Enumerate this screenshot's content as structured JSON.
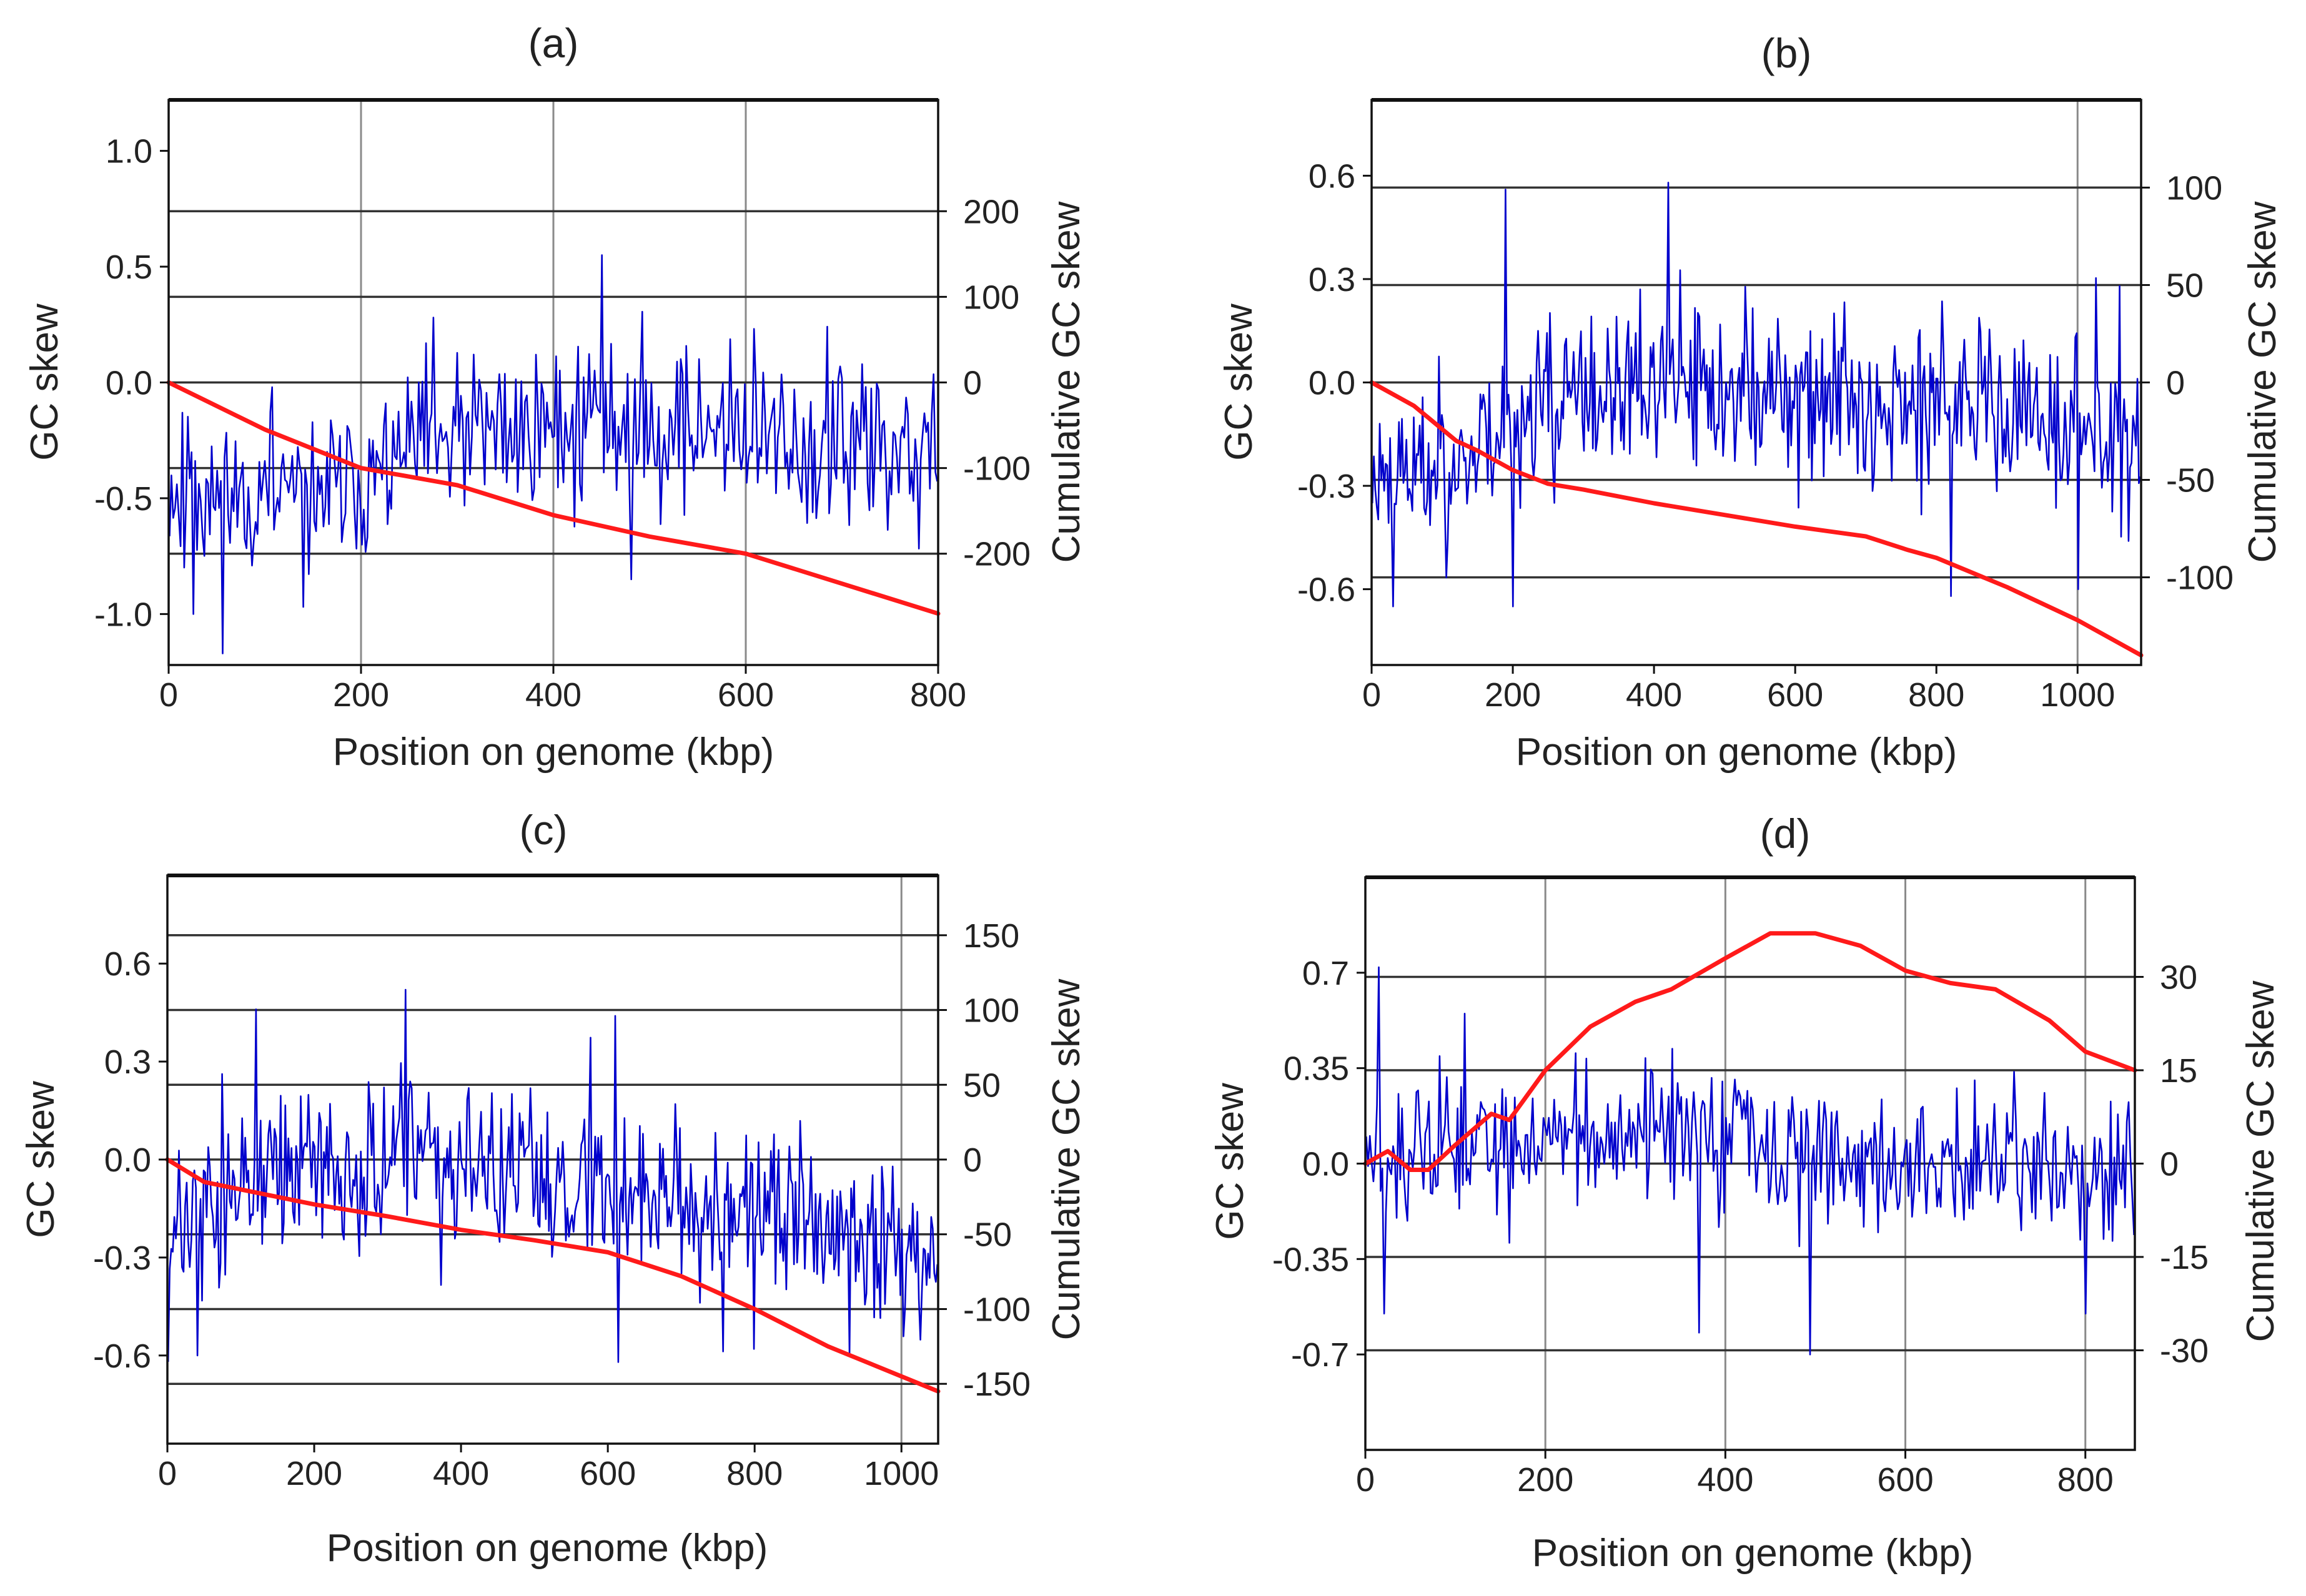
{
  "colors": {
    "skew": "#0000cc",
    "cumulative": "#ff1a1a",
    "frame": "#111111",
    "grid_vertical": "#8a8a8a",
    "grid_horizontal": "#333333"
  },
  "chart_data": [
    {
      "id": "a",
      "type": "line",
      "panel_label": "(a)",
      "xlabel": "Position on genome (kbp)",
      "ylabel": "GC skew",
      "y2label": "Cumulative GC skew",
      "xlim": [
        0,
        800
      ],
      "xticks": [
        0,
        200,
        400,
        600,
        800
      ],
      "xtick_labels": [
        "0",
        "200",
        "400",
        "600",
        "800"
      ],
      "ylim": [
        -1.22,
        1.22
      ],
      "yticks": [
        1.0,
        0.5,
        0.0,
        -0.5,
        -1.0
      ],
      "ytick_labels": [
        "1.0",
        "0.5",
        "0.0",
        "-0.5",
        "-1.0"
      ],
      "y2lim": [
        -330,
        330
      ],
      "y2ticks": [
        200,
        100,
        0,
        -100,
        -200
      ],
      "y2tick_labels": [
        "200",
        "100",
        "0",
        "-100",
        "-200"
      ],
      "xgrid": [
        200,
        400,
        600
      ],
      "y2grid": [
        200,
        100,
        0,
        -100,
        -200
      ],
      "skew": {
        "name": "GC skew",
        "axis": "left",
        "n": 420,
        "seed": 11,
        "trend_x": [
          0,
          150,
          250,
          350,
          450,
          550,
          700,
          800
        ],
        "trend_y": [
          -0.45,
          -0.5,
          -0.3,
          -0.2,
          -0.15,
          -0.2,
          -0.3,
          -0.3
        ],
        "noise": 0.26,
        "spikes": [
          [
            450,
            0.55
          ],
          [
            275,
            0.28
          ],
          [
            25,
            -1.0
          ],
          [
            480,
            -0.85
          ]
        ]
      },
      "cumulative": {
        "name": "Cumulative GC skew",
        "axis": "right",
        "x": [
          0,
          100,
          200,
          300,
          400,
          500,
          600,
          700,
          800
        ],
        "y": [
          0,
          -55,
          -100,
          -120,
          -155,
          -180,
          -200,
          -235,
          -270
        ]
      }
    },
    {
      "id": "b",
      "type": "line",
      "panel_label": "(b)",
      "xlabel": "Position on genome (kbp)",
      "ylabel": "GC skew",
      "y2label": "Cumulative GC skew",
      "xlim": [
        0,
        1090
      ],
      "xticks": [
        0,
        200,
        400,
        600,
        800,
        1000
      ],
      "xtick_labels": [
        "0",
        "200",
        "400",
        "600",
        "800",
        "1000"
      ],
      "ylim": [
        -0.82,
        0.82
      ],
      "yticks": [
        0.6,
        0.3,
        0.0,
        -0.3,
        -0.6
      ],
      "ytick_labels": [
        "0.6",
        "0.3",
        "0.0",
        "-0.3",
        "-0.6"
      ],
      "y2lim": [
        -145,
        145
      ],
      "y2ticks": [
        100,
        50,
        0,
        -50,
        -100
      ],
      "y2tick_labels": [
        "100",
        "50",
        "0",
        "-50",
        "-100"
      ],
      "xgrid": [
        1000
      ],
      "y2grid": [
        100,
        50,
        0,
        -50,
        -100
      ],
      "skew": {
        "name": "GC skew",
        "axis": "left",
        "n": 520,
        "seed": 23,
        "trend_x": [
          0,
          120,
          200,
          400,
          600,
          800,
          1000,
          1090
        ],
        "trend_y": [
          -0.28,
          -0.22,
          -0.1,
          -0.02,
          -0.03,
          -0.05,
          -0.12,
          -0.18
        ],
        "noise": 0.17,
        "spikes": [
          [
            420,
            0.58
          ],
          [
            190,
            0.56
          ],
          [
            1060,
            0.28
          ],
          [
            1000,
            -0.6
          ],
          [
            820,
            -0.62
          ],
          [
            200,
            -0.65
          ],
          [
            30,
            -0.65
          ]
        ]
      },
      "cumulative": {
        "name": "Cumulative GC skew",
        "axis": "right",
        "x": [
          0,
          60,
          120,
          150,
          200,
          250,
          300,
          400,
          500,
          600,
          700,
          760,
          800,
          900,
          1000,
          1090
        ],
        "y": [
          0,
          -12,
          -30,
          -35,
          -45,
          -52,
          -55,
          -62,
          -68,
          -74,
          -79,
          -86,
          -90,
          -105,
          -122,
          -140
        ]
      }
    },
    {
      "id": "c",
      "type": "line",
      "panel_label": "(c)",
      "xlabel": "Position on genome (kbp)",
      "ylabel": "GC skew",
      "y2label": "Cumulative GC skew",
      "xlim": [
        0,
        1050
      ],
      "xticks": [
        0,
        200,
        400,
        600,
        800,
        1000
      ],
      "xtick_labels": [
        "0",
        "200",
        "400",
        "600",
        "800",
        "1000"
      ],
      "ylim": [
        -0.87,
        0.87
      ],
      "yticks": [
        0.6,
        0.3,
        0.0,
        -0.3,
        -0.6
      ],
      "ytick_labels": [
        "0.6",
        "0.3",
        "0.0",
        "-0.3",
        "-0.6"
      ],
      "y2lim": [
        -190,
        190
      ],
      "y2ticks": [
        150,
        100,
        50,
        0,
        -50,
        -100,
        -150
      ],
      "y2tick_labels": [
        "150",
        "100",
        "50",
        "0",
        "-50",
        "-100",
        "-150"
      ],
      "xgrid": [
        1000
      ],
      "y2grid": [
        150,
        100,
        50,
        0,
        -50,
        -100,
        -150
      ],
      "skew": {
        "name": "GC skew",
        "axis": "left",
        "n": 500,
        "seed": 37,
        "trend_x": [
          0,
          50,
          150,
          300,
          450,
          600,
          800,
          950,
          1050
        ],
        "trend_y": [
          -0.25,
          -0.18,
          -0.05,
          0.0,
          -0.05,
          -0.08,
          -0.15,
          -0.25,
          -0.3
        ],
        "noise": 0.18,
        "spikes": [
          [
            325,
            0.52
          ],
          [
            610,
            0.44
          ],
          [
            120,
            0.46
          ],
          [
            615,
            -0.62
          ],
          [
            800,
            -0.58
          ],
          [
            40,
            -0.6
          ],
          [
            930,
            -0.6
          ]
        ]
      },
      "cumulative": {
        "name": "Cumulative GC skew",
        "axis": "right",
        "x": [
          0,
          50,
          100,
          200,
          300,
          400,
          500,
          600,
          700,
          800,
          900,
          1000,
          1050
        ],
        "y": [
          0,
          -15,
          -20,
          -30,
          -38,
          -47,
          -54,
          -62,
          -78,
          -100,
          -125,
          -145,
          -155
        ]
      }
    },
    {
      "id": "d",
      "type": "line",
      "panel_label": "(d)",
      "xlabel": "Position on genome (kbp)",
      "ylabel": "GC skew",
      "y2label": "Cumulative GC skew",
      "xlim": [
        0,
        855
      ],
      "xticks": [
        0,
        200,
        400,
        600,
        800
      ],
      "xtick_labels": [
        "0",
        "200",
        "400",
        "600",
        "800"
      ],
      "ylim": [
        -1.05,
        1.05
      ],
      "yticks": [
        0.7,
        0.35,
        0.0,
        -0.35,
        -0.7
      ],
      "ytick_labels": [
        "0.7",
        "0.35",
        "0.0",
        "-0.35",
        "-0.7"
      ],
      "y2lim": [
        -46,
        46
      ],
      "y2ticks": [
        30,
        15,
        0,
        -15,
        -30
      ],
      "y2tick_labels": [
        "30",
        "15",
        "0",
        "-15",
        "-30"
      ],
      "xgrid": [
        200,
        400,
        600,
        800
      ],
      "y2grid": [
        30,
        15,
        -15,
        -30
      ],
      "y0grid": true,
      "skew": {
        "name": "GC skew",
        "axis": "left",
        "n": 430,
        "seed": 51,
        "trend_x": [
          0,
          100,
          200,
          300,
          400,
          500,
          600,
          700,
          855
        ],
        "trend_y": [
          0.0,
          0.05,
          0.1,
          0.1,
          0.08,
          0.05,
          -0.02,
          0.02,
          -0.08
        ],
        "noise": 0.19,
        "spikes": [
          [
            110,
            0.55
          ],
          [
            15,
            0.72
          ],
          [
            20,
            -0.55
          ],
          [
            495,
            -0.7
          ],
          [
            370,
            -0.62
          ],
          [
            800,
            -0.55
          ]
        ]
      },
      "cumulative": {
        "name": "Cumulative GC skew",
        "axis": "right",
        "x": [
          0,
          25,
          50,
          70,
          100,
          140,
          160,
          200,
          250,
          300,
          340,
          400,
          450,
          500,
          550,
          600,
          650,
          700,
          760,
          800,
          855
        ],
        "y": [
          0,
          2,
          -1,
          -1,
          3,
          8,
          7,
          15,
          22,
          26,
          28,
          33,
          37,
          37,
          35,
          31,
          29,
          28,
          23,
          18,
          15
        ]
      }
    }
  ]
}
